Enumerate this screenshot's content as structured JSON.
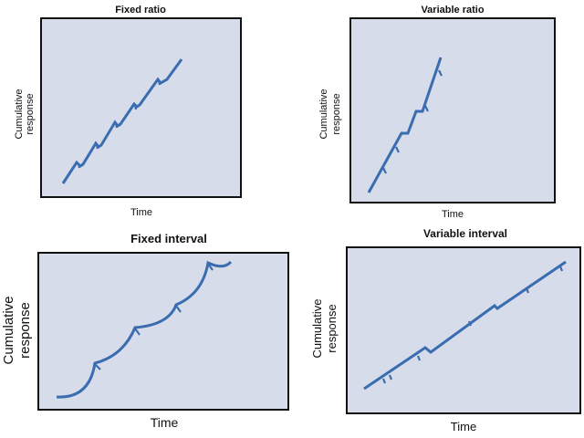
{
  "colors": {
    "plot_background": "#d6dcea",
    "curve": "#3a6db0",
    "frame": "#111111"
  },
  "panels": [
    {
      "title": "Fixed ratio",
      "xlabel": "Time",
      "ylabel_line1": "Cumulative",
      "ylabel_line2": "response"
    },
    {
      "title": "Variable ratio",
      "xlabel": "Time",
      "ylabel_line1": "Cumulative",
      "ylabel_line2": "response"
    },
    {
      "title": "Fixed interval",
      "xlabel": "Time",
      "ylabel_line1": "Cumulative",
      "ylabel_line2": "response"
    },
    {
      "title": "Variable interval",
      "xlabel": "Time",
      "ylabel_line1": "Cumulative",
      "ylabel_line2": "response"
    }
  ]
}
